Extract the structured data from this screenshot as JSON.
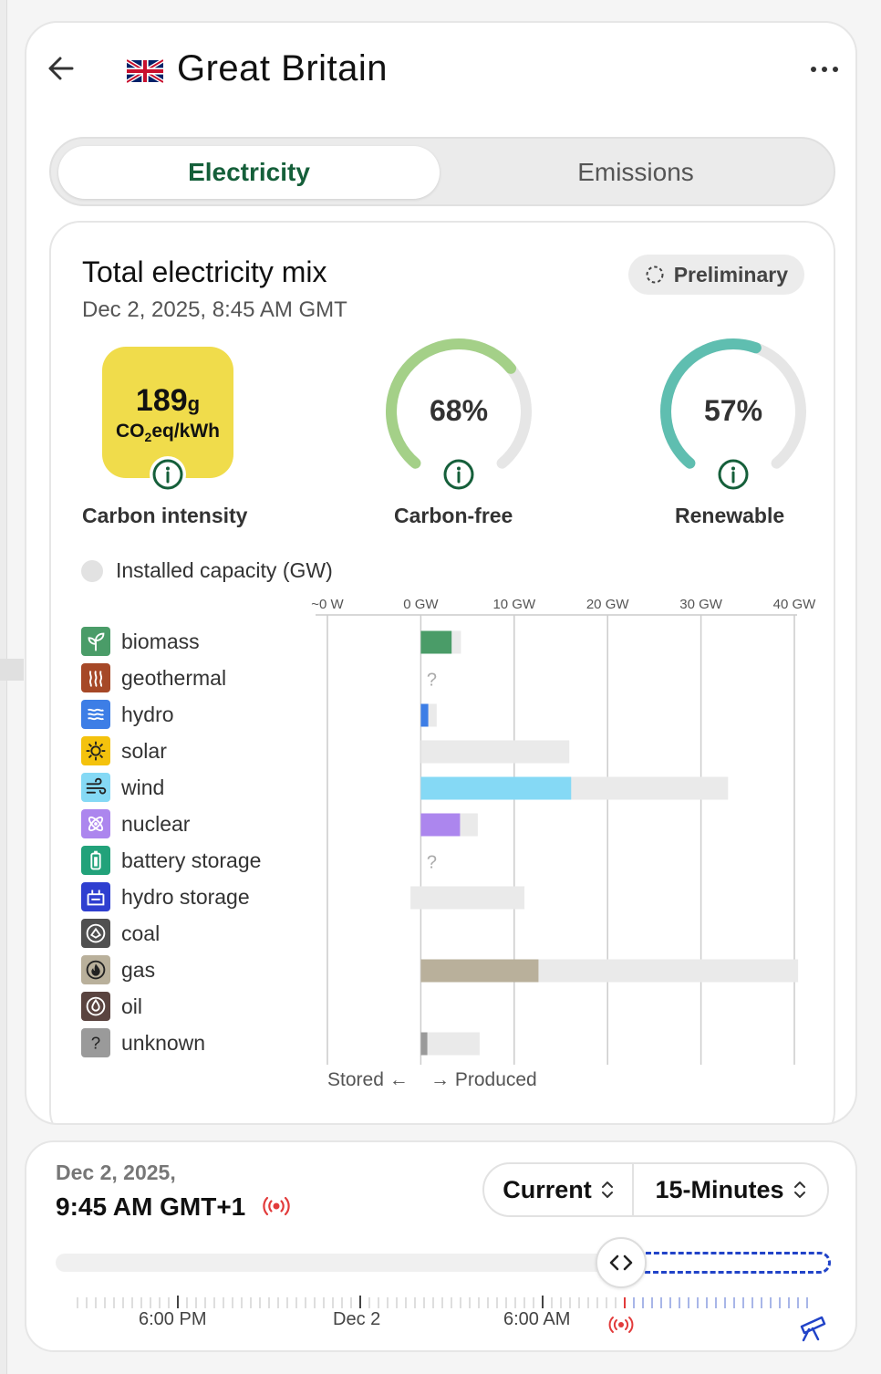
{
  "header": {
    "title": "Great Britain",
    "back_icon": "arrow-left-icon",
    "flag_icon": "uk-flag-icon",
    "more_icon": "more-dots-icon"
  },
  "tabs": [
    {
      "label": "Electricity",
      "active": true
    },
    {
      "label": "Emissions",
      "active": false
    }
  ],
  "mix": {
    "title": "Total electricity mix",
    "date": "Dec 2, 2025, 8:45 AM GMT",
    "status_badge": "Preliminary",
    "carbon_intensity": {
      "value": "189",
      "value_unit": "g",
      "unit_prefix": "CO",
      "unit_sub": "2",
      "unit_suffix": "eq/kWh",
      "label": "Carbon intensity",
      "color": "#f0dc4b"
    },
    "carbon_free": {
      "value": "68%",
      "fraction": 0.68,
      "label": "Carbon-free",
      "color": "#a4d088"
    },
    "renewable": {
      "value": "57%",
      "fraction": 0.57,
      "label": "Renewable",
      "color": "#5fbeb0"
    }
  },
  "capacity_toggle": {
    "label": "Installed capacity (GW)",
    "enabled": false
  },
  "chart_data": {
    "type": "bar",
    "orientation": "horizontal",
    "xlim": [
      -10,
      40
    ],
    "tick_labels": [
      "~0 W",
      "0 GW",
      "10 GW",
      "20 GW",
      "30 GW",
      "40 GW"
    ],
    "tick_values": [
      -10,
      0,
      10,
      20,
      30,
      40
    ],
    "axis_left_label": "Stored",
    "axis_right_label": "Produced",
    "categories": [
      "biomass",
      "geothermal",
      "hydro",
      "solar",
      "wind",
      "nuclear",
      "battery storage",
      "hydro storage",
      "coal",
      "gas",
      "oil",
      "unknown"
    ],
    "series": [
      {
        "values": [
          3.3,
          null,
          0.8,
          0,
          16.1,
          4.2,
          null,
          0,
          0,
          12.6,
          0,
          0.7
        ]
      },
      {
        "values": [
          4.3,
          null,
          1.7,
          15.9,
          32.9,
          6.1,
          null,
          11.1,
          0,
          40.4,
          0,
          6.3
        ],
        "start": [
          0,
          null,
          0,
          0,
          0,
          0,
          null,
          -1.1,
          0,
          0,
          0,
          0
        ]
      }
    ],
    "unknown_marker": "?",
    "colors": {
      "biomass": "#4a9c68",
      "geothermal": "#a64827",
      "hydro": "#3d7ee6",
      "solar": "#f4c20d",
      "wind": "#85d9f5",
      "nuclear": "#ac86ee",
      "battery storage": "#22a27a",
      "hydro storage": "#2f3fd0",
      "coal": "#505050",
      "gas": "#b9b09b",
      "oil": "#5a4440",
      "unknown": "#9a9a9a",
      "capacity": "#eaeaea"
    }
  },
  "legend_icons": [
    "sprout-icon",
    "geothermal-icon",
    "water-waves-icon",
    "sun-icon",
    "wind-icon",
    "atom-icon",
    "battery-icon",
    "hydro-storage-icon",
    "coal-icon",
    "flame-icon",
    "oil-drop-icon",
    "question-icon"
  ],
  "time": {
    "date_line": "Dec 2, 2025,",
    "time_line": "9:45 AM GMT+1",
    "selector_left": "Current",
    "selector_right": "15-Minutes",
    "tick_labels": [
      "6:00 PM",
      "Dec 2",
      "6:00 AM"
    ],
    "live_icon": "live-broadcast-icon",
    "forecast_icon": "telescope-icon",
    "slider_icon": "code-arrows-icon"
  }
}
